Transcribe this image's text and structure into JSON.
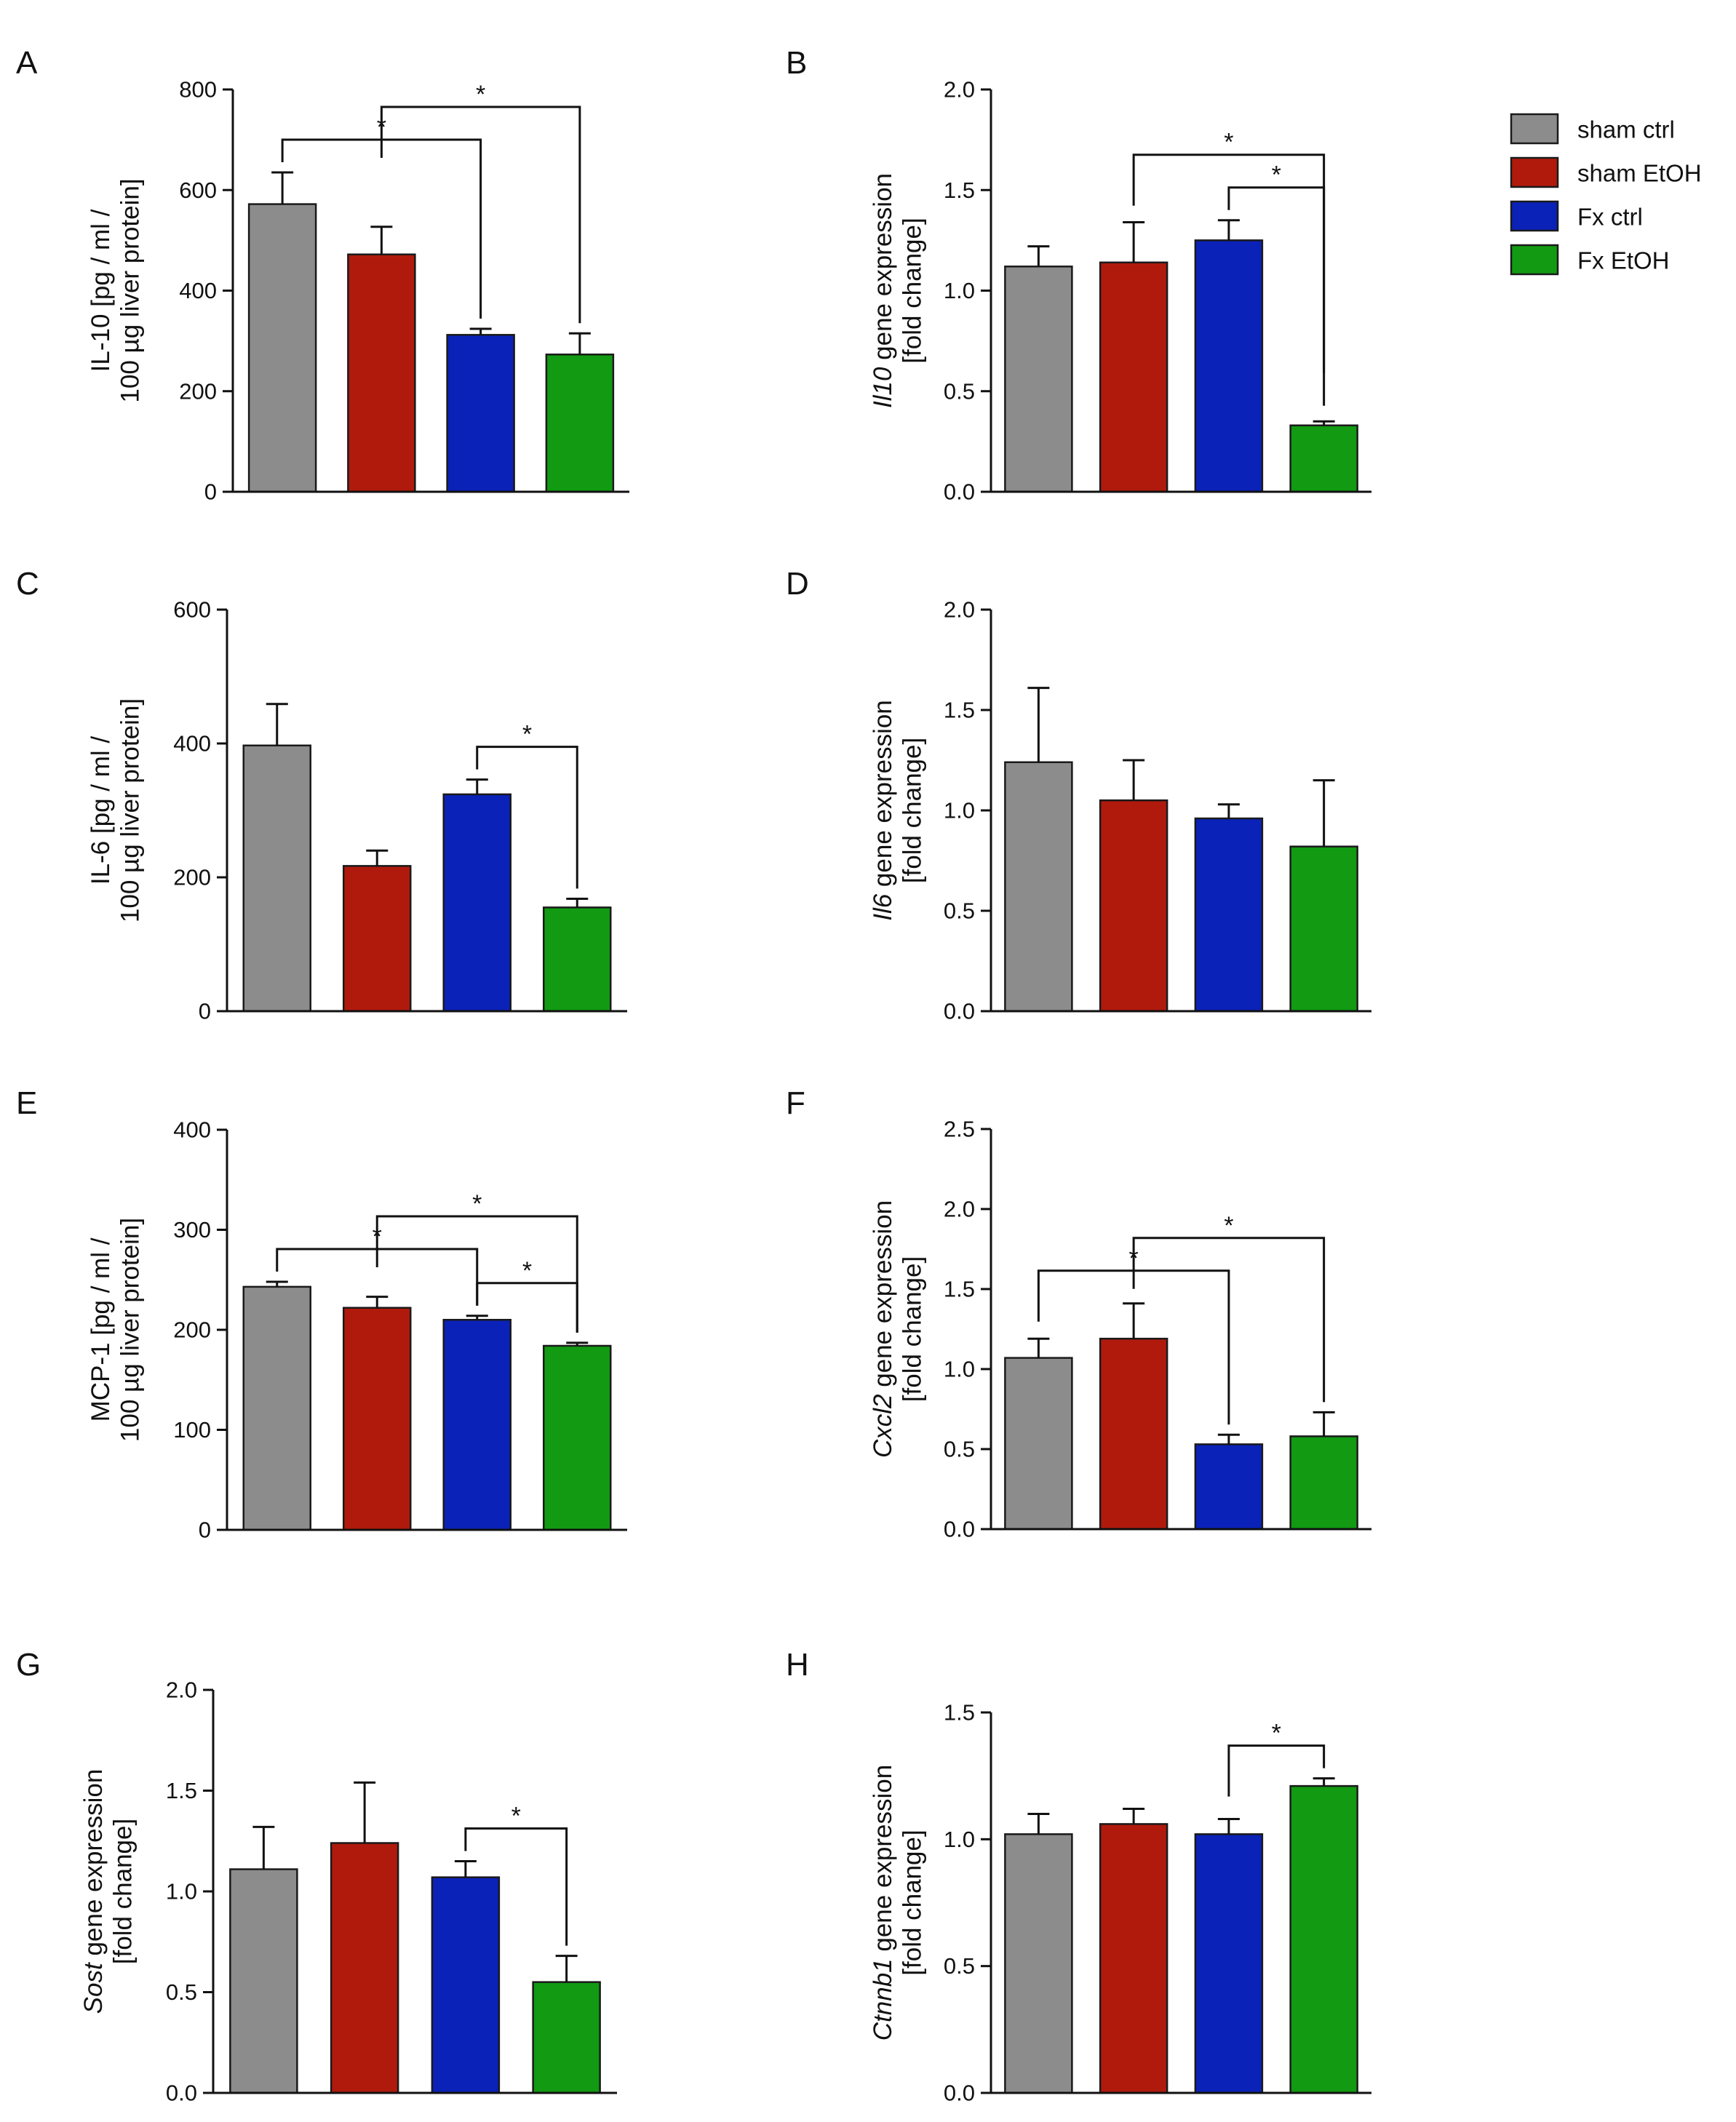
{
  "legend": [
    {
      "label": "sham ctrl",
      "color": "#8c8c8c"
    },
    {
      "label": "sham EtOH",
      "color": "#b01a0c"
    },
    {
      "label": "Fx ctrl",
      "color": "#0a22b8"
    },
    {
      "label": "Fx EtOH",
      "color": "#119a12"
    }
  ],
  "significance_symbol": "*",
  "chart_data": [
    {
      "panel": "A",
      "type": "bar",
      "ylabel": [
        "IL-10 [pg / ml /",
        "100 µg liver protein]"
      ],
      "ylim": [
        0,
        800
      ],
      "yticks": [
        0,
        200,
        400,
        600,
        800
      ],
      "decimals": 0,
      "categories": [
        "sham ctrl",
        "sham EtOH",
        "Fx ctrl",
        "Fx EtOH"
      ],
      "values": [
        572,
        472,
        312,
        273
      ],
      "errors": [
        63,
        55,
        12,
        42
      ],
      "significance": [
        {
          "from": 0,
          "to": 2,
          "symbol": "*"
        },
        {
          "from": 1,
          "to": 3,
          "symbol": "*"
        }
      ]
    },
    {
      "panel": "B",
      "type": "bar",
      "ylabel": [
        "Il10 gene expression",
        "[fold change]"
      ],
      "ylabel_italic_word": "Il10",
      "ylim": [
        0,
        2.0
      ],
      "yticks": [
        0.0,
        0.5,
        1.0,
        1.5,
        2.0
      ],
      "decimals": 1,
      "categories": [
        "sham ctrl",
        "sham EtOH",
        "Fx ctrl",
        "Fx EtOH"
      ],
      "values": [
        1.12,
        1.14,
        1.25,
        0.33
      ],
      "errors": [
        0.1,
        0.2,
        0.1,
        0.02
      ],
      "significance": [
        {
          "from": 1,
          "to": 3,
          "symbol": "*"
        },
        {
          "from": 2,
          "to": 3,
          "symbol": "*"
        }
      ]
    },
    {
      "panel": "C",
      "type": "bar",
      "ylabel": [
        "IL-6 [pg / ml /",
        "100 µg liver protein]"
      ],
      "ylim": [
        0,
        600
      ],
      "yticks": [
        0,
        200,
        400,
        600
      ],
      "decimals": 0,
      "categories": [
        "sham ctrl",
        "sham EtOH",
        "Fx ctrl",
        "Fx EtOH"
      ],
      "values": [
        397,
        217,
        324,
        155
      ],
      "errors": [
        62,
        23,
        22,
        13
      ],
      "significance": [
        {
          "from": 2,
          "to": 3,
          "symbol": "*"
        }
      ]
    },
    {
      "panel": "D",
      "type": "bar",
      "ylabel": [
        "Il6 gene expression",
        "[fold change]"
      ],
      "ylabel_italic_word": "Il6",
      "ylim": [
        0,
        2.0
      ],
      "yticks": [
        0.0,
        0.5,
        1.0,
        1.5,
        2.0
      ],
      "decimals": 1,
      "categories": [
        "sham ctrl",
        "sham EtOH",
        "Fx ctrl",
        "Fx EtOH"
      ],
      "values": [
        1.24,
        1.05,
        0.96,
        0.82
      ],
      "errors": [
        0.37,
        0.2,
        0.07,
        0.33
      ],
      "significance": []
    },
    {
      "panel": "E",
      "type": "bar",
      "ylabel": [
        "MCP-1 [pg / ml /",
        "100 µg liver protein]"
      ],
      "ylim": [
        0,
        400
      ],
      "yticks": [
        0,
        100,
        200,
        300,
        400
      ],
      "decimals": 0,
      "categories": [
        "sham ctrl",
        "sham EtOH",
        "Fx ctrl",
        "Fx EtOH"
      ],
      "values": [
        243,
        222,
        210,
        184
      ],
      "errors": [
        5,
        11,
        4,
        3
      ],
      "significance": [
        {
          "from": 0,
          "to": 2,
          "symbol": "*"
        },
        {
          "from": 1,
          "to": 3,
          "symbol": "*"
        },
        {
          "from": 2,
          "to": 3,
          "symbol": "*"
        }
      ]
    },
    {
      "panel": "F",
      "type": "bar",
      "ylabel": [
        "Cxcl2 gene expression",
        "[fold change]"
      ],
      "ylabel_italic_word": "Cxcl2",
      "ylim": [
        0,
        2.5
      ],
      "yticks": [
        0.0,
        0.5,
        1.0,
        1.5,
        2.0,
        2.5
      ],
      "decimals": 1,
      "categories": [
        "sham ctrl",
        "sham EtOH",
        "Fx ctrl",
        "Fx EtOH"
      ],
      "values": [
        1.07,
        1.19,
        0.53,
        0.58
      ],
      "errors": [
        0.12,
        0.22,
        0.06,
        0.15
      ],
      "significance": [
        {
          "from": 0,
          "to": 2,
          "symbol": "*"
        },
        {
          "from": 1,
          "to": 3,
          "symbol": "*"
        }
      ]
    },
    {
      "panel": "G",
      "type": "bar",
      "ylabel": [
        "Sost gene expression",
        "[fold change]"
      ],
      "ylabel_italic_word": "Sost",
      "ylim": [
        0,
        2.0
      ],
      "yticks": [
        0.0,
        0.5,
        1.0,
        1.5,
        2.0
      ],
      "decimals": 1,
      "categories": [
        "sham ctrl",
        "sham EtOH",
        "Fx ctrl",
        "Fx EtOH"
      ],
      "values": [
        1.11,
        1.24,
        1.07,
        0.55
      ],
      "errors": [
        0.21,
        0.3,
        0.08,
        0.13
      ],
      "significance": [
        {
          "from": 2,
          "to": 3,
          "symbol": "*"
        }
      ]
    },
    {
      "panel": "H",
      "type": "bar",
      "ylabel": [
        "Ctnnb1 gene expression",
        "[fold change]"
      ],
      "ylabel_italic_word": "Ctnnb1",
      "ylim": [
        0,
        1.5
      ],
      "yticks": [
        0.0,
        0.5,
        1.0,
        1.5
      ],
      "decimals": 1,
      "categories": [
        "sham ctrl",
        "sham EtOH",
        "Fx ctrl",
        "Fx EtOH"
      ],
      "values": [
        1.02,
        1.06,
        1.02,
        1.21
      ],
      "errors": [
        0.08,
        0.06,
        0.06,
        0.03
      ],
      "significance": [
        {
          "from": 2,
          "to": 3,
          "symbol": "*"
        }
      ]
    }
  ]
}
